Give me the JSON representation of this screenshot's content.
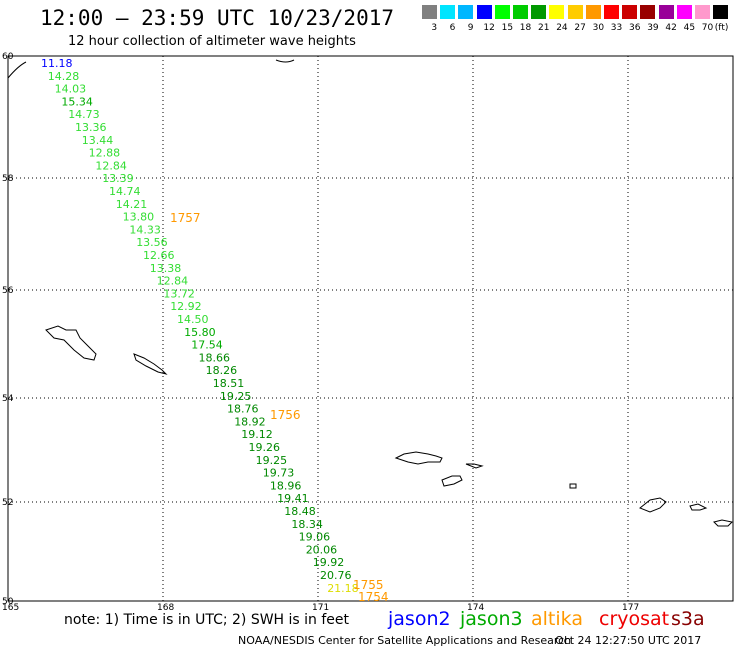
{
  "title": "12:00 – 23:59 UTC 10/23/2017",
  "subtitle": "12 hour collection of altimeter wave heights",
  "colorbar": {
    "labels": [
      "3",
      "6",
      "9",
      "12",
      "15",
      "18",
      "21",
      "24",
      "27",
      "30",
      "33",
      "36",
      "39",
      "42",
      "45",
      "70",
      "(ft)"
    ],
    "colors": [
      "#808080",
      "#00e5ff",
      "#00b7ff",
      "#0000ff",
      "#00ff00",
      "#00cc00",
      "#009900",
      "#ffff00",
      "#ffcc00",
      "#ff9900",
      "#ff0000",
      "#cc0000",
      "#990000",
      "#990099",
      "#ff00ff",
      "#ff99cc",
      "#000000"
    ]
  },
  "axes": {
    "lat_labels": [
      "60",
      "58",
      "56",
      "54",
      "52",
      "50"
    ],
    "lon_labels": [
      "165",
      "168",
      "171",
      "174",
      "177"
    ]
  },
  "track": [
    {
      "value": "11.18",
      "color": "#0000ff"
    },
    {
      "value": "14.28",
      "color": "#33dd33"
    },
    {
      "value": "14.03",
      "color": "#33dd33"
    },
    {
      "value": "15.34",
      "color": "#00aa00"
    },
    {
      "value": "14.73",
      "color": "#33dd33"
    },
    {
      "value": "13.36",
      "color": "#33dd33"
    },
    {
      "value": "13.44",
      "color": "#33dd33"
    },
    {
      "value": "12.88",
      "color": "#33dd33"
    },
    {
      "value": "12.84",
      "color": "#33dd33"
    },
    {
      "value": "13.39",
      "color": "#33dd33"
    },
    {
      "value": "14.74",
      "color": "#33dd33"
    },
    {
      "value": "14.21",
      "color": "#33dd33"
    },
    {
      "value": "13.80",
      "color": "#33dd33"
    },
    {
      "value": "14.33",
      "color": "#33dd33"
    },
    {
      "value": "13.56",
      "color": "#33dd33"
    },
    {
      "value": "12.66",
      "color": "#33dd33"
    },
    {
      "value": "13.38",
      "color": "#33dd33"
    },
    {
      "value": "12.84",
      "color": "#33dd33"
    },
    {
      "value": "13.72",
      "color": "#33dd33"
    },
    {
      "value": "12.92",
      "color": "#33dd33"
    },
    {
      "value": "14.50",
      "color": "#33dd33"
    },
    {
      "value": "15.80",
      "color": "#00aa00"
    },
    {
      "value": "17.54",
      "color": "#00aa00"
    },
    {
      "value": "18.66",
      "color": "#008800"
    },
    {
      "value": "18.26",
      "color": "#008800"
    },
    {
      "value": "18.51",
      "color": "#008800"
    },
    {
      "value": "19.25",
      "color": "#008800"
    },
    {
      "value": "18.76",
      "color": "#008800"
    },
    {
      "value": "18.92",
      "color": "#008800"
    },
    {
      "value": "19.12",
      "color": "#008800"
    },
    {
      "value": "19.26",
      "color": "#008800"
    },
    {
      "value": "19.25",
      "color": "#008800"
    },
    {
      "value": "19.73",
      "color": "#008800"
    },
    {
      "value": "18.96",
      "color": "#008800"
    },
    {
      "value": "19.41",
      "color": "#008800"
    },
    {
      "value": "18.48",
      "color": "#008800"
    },
    {
      "value": "18.34",
      "color": "#008800"
    },
    {
      "value": "19.06",
      "color": "#008800"
    },
    {
      "value": "20.06",
      "color": "#008800"
    },
    {
      "value": "19.92",
      "color": "#008800"
    },
    {
      "value": "20.76",
      "color": "#008800"
    },
    {
      "value": "21.18",
      "color": "#dddd00"
    }
  ],
  "time_labels": [
    "1757",
    "1756",
    "1755",
    "1754"
  ],
  "note": "note:  1)  Time is in UTC;  2)  SWH is in feet",
  "satellites": [
    {
      "name": "jason2",
      "color": "#0000ff"
    },
    {
      "name": "jason3",
      "color": "#00aa00"
    },
    {
      "name": "altika",
      "color": "#ff9900"
    },
    {
      "name": "cryosat",
      "color": "#ee0000"
    },
    {
      "name": "s3a",
      "color": "#880000"
    }
  ],
  "credit": "NOAA/NESDIS Center for Satellite Applications and Research",
  "timestamp": "Oct 24 12:27:50 UTC 2017",
  "colors": {
    "time_label": "#ff9900",
    "grid": "#000000"
  }
}
